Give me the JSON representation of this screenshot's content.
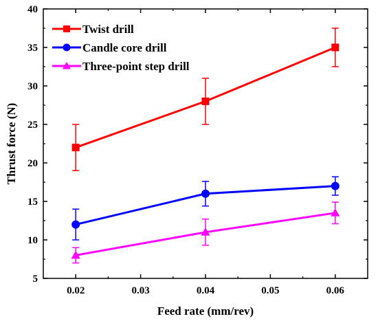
{
  "chart_data": {
    "type": "line",
    "title": "",
    "xlabel": "Feed rate (mm/rev)",
    "ylabel": "Thrust force (N)",
    "xlim": [
      0.015,
      0.065
    ],
    "ylim": [
      5,
      40
    ],
    "xticks": [
      0.02,
      0.03,
      0.04,
      0.05,
      0.06
    ],
    "yticks": [
      5,
      10,
      15,
      20,
      25,
      30,
      35,
      40
    ],
    "xtick_labels": [
      "0.02",
      "0.03",
      "0.04",
      "0.05",
      "0.06"
    ],
    "ytick_labels": [
      "5",
      "10",
      "15",
      "20",
      "25",
      "30",
      "35",
      "40"
    ],
    "grid": false,
    "legend_position": "top-left",
    "x": [
      0.02,
      0.04,
      0.06
    ],
    "series": [
      {
        "name": "Twist drill",
        "color": "#ff0000",
        "marker": "square",
        "values": [
          22,
          28,
          35
        ],
        "errors": [
          3,
          3,
          2.5
        ]
      },
      {
        "name": "Candle core drill",
        "color": "#0000ff",
        "marker": "circle",
        "values": [
          12,
          16,
          17
        ],
        "errors": [
          2,
          1.6,
          1.2
        ]
      },
      {
        "name": "Three-point step drill",
        "color": "#ff00ff",
        "marker": "triangle",
        "values": [
          8,
          11,
          13.5
        ],
        "errors": [
          1,
          1.7,
          1.4
        ]
      }
    ]
  }
}
